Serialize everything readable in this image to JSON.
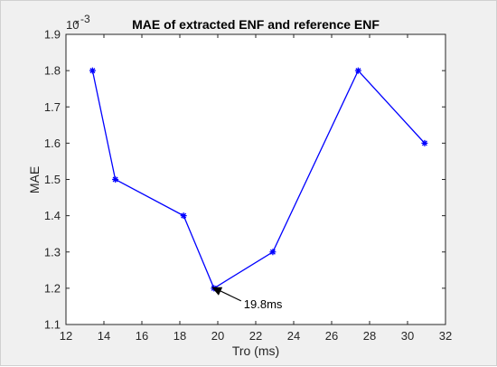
{
  "chart_data": {
    "type": "line",
    "title": "MAE of extracted ENF and reference ENF",
    "xlabel": "Tro (ms)",
    "ylabel": "MAE",
    "xlim": [
      12,
      32
    ],
    "ylim": [
      1.1,
      1.9
    ],
    "xticks": [
      "12",
      "14",
      "16",
      "18",
      "20",
      "22",
      "24",
      "26",
      "28",
      "30",
      "32"
    ],
    "yticks": [
      "1.1",
      "1.2",
      "1.3",
      "1.4",
      "1.5",
      "1.6",
      "1.7",
      "1.8",
      "1.9"
    ],
    "y_multiplier_base": "10",
    "y_multiplier_exponent": "-3",
    "grid": false,
    "legend": "none",
    "series": [
      {
        "x": [
          13.4,
          14.6,
          18.2,
          19.8,
          22.9,
          27.4,
          30.9
        ],
        "values": [
          1.8,
          1.5,
          1.4,
          1.2,
          1.3,
          1.8,
          1.6
        ],
        "color": "#0000ff",
        "marker": "asterisk"
      }
    ],
    "annotation": {
      "text": "19.8ms",
      "x": 19.8,
      "y": 1.2
    }
  }
}
